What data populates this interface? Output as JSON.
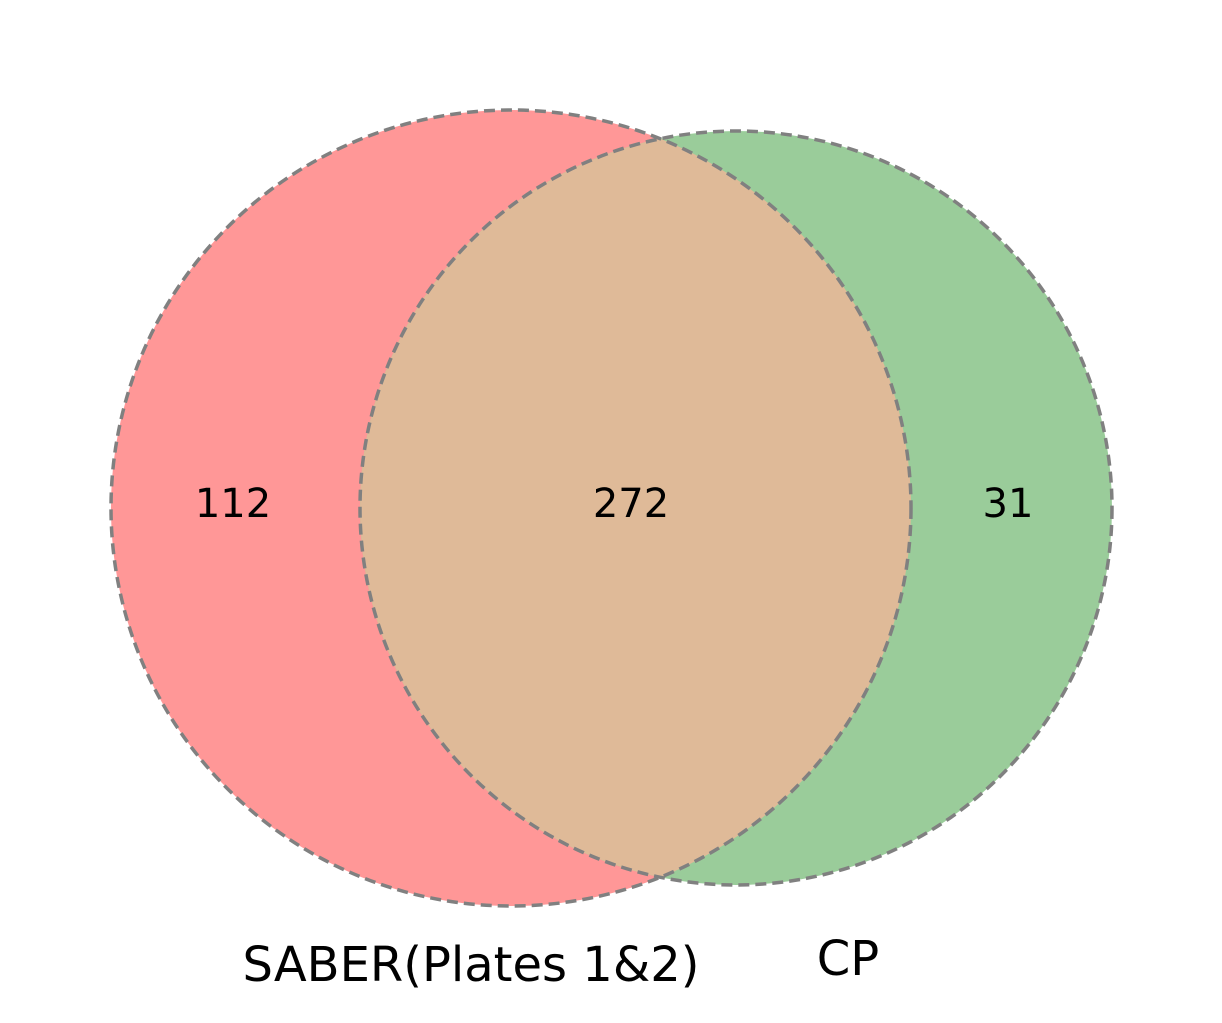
{
  "chart_data": {
    "type": "venn",
    "sets": [
      {
        "name": "SABER(Plates 1&2)",
        "color": "#ff9797"
      },
      {
        "name": "CP",
        "color": "#9acc9a"
      }
    ],
    "regions": {
      "left_only": 112,
      "intersection": 272,
      "right_only": 31
    },
    "intersection_color": "#dfba98",
    "outline_color": "#808080",
    "outline_style": "dashed"
  }
}
